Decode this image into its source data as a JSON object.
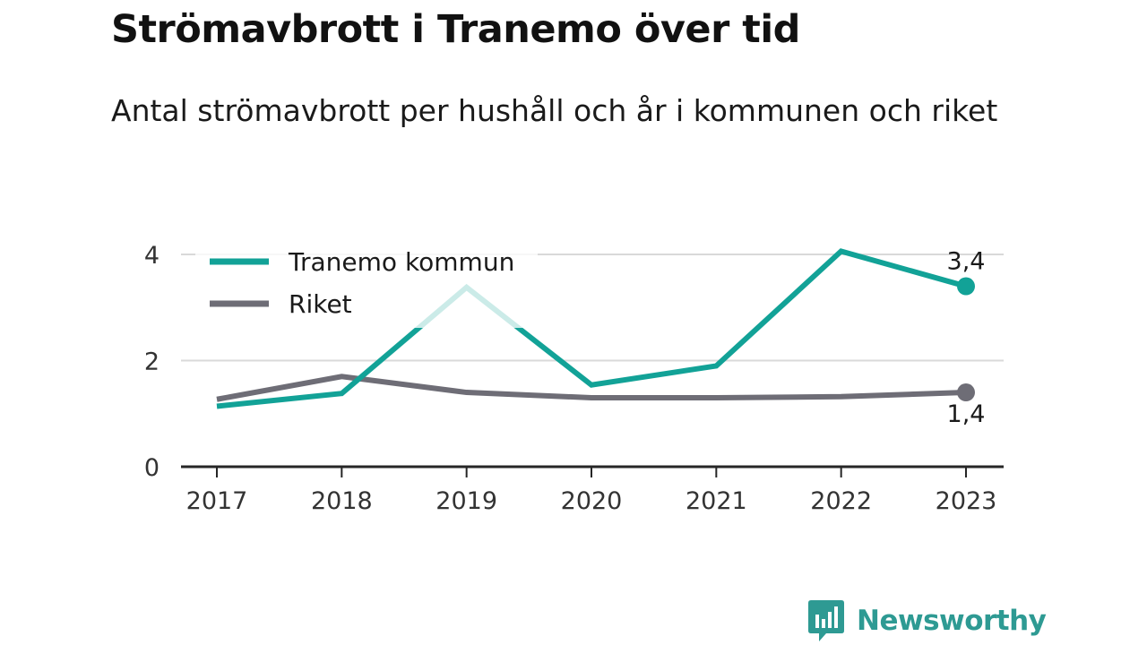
{
  "chart_data": {
    "type": "line",
    "title": "Strömavbrott i Tranemo över tid",
    "subtitle": "Antal strömavbrott per hushåll och år i kommunen och riket",
    "x": [
      2017,
      2018,
      2019,
      2020,
      2021,
      2022,
      2023
    ],
    "x_tick_labels": [
      "2017",
      "2018",
      "2019",
      "2020",
      "2021",
      "2022",
      "2023"
    ],
    "y_ticks": [
      0,
      2,
      4
    ],
    "y_tick_labels": [
      "0",
      "2",
      "4"
    ],
    "ylim": [
      0,
      4
    ],
    "grid": "horizontal",
    "legend_position": "top-left",
    "series": [
      {
        "name": "Tranemo kommun",
        "color": "#12a297",
        "values": [
          1.14,
          1.38,
          3.38,
          1.54,
          1.9,
          4.06,
          3.4
        ],
        "end_label": "3,4"
      },
      {
        "name": "Riket",
        "color": "#6e6d76",
        "values": [
          1.27,
          1.7,
          1.4,
          1.3,
          1.3,
          1.32,
          1.4
        ],
        "end_label": "1,4"
      }
    ]
  },
  "brand": {
    "name": "Newsworthy",
    "color": "#2e9a93"
  }
}
